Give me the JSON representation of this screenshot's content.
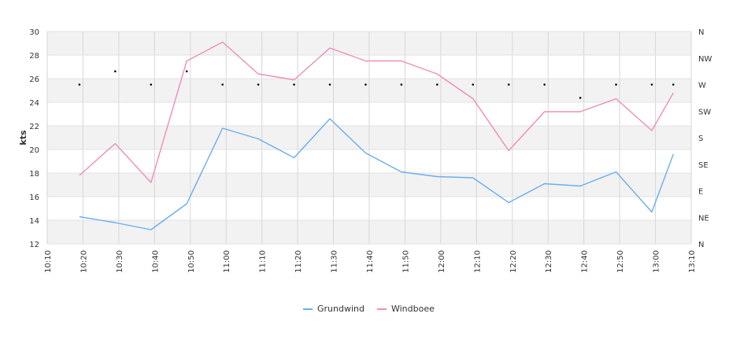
{
  "chart_data": {
    "type": "line",
    "ylabel": "kts",
    "ylim": [
      12,
      30
    ],
    "y_ticks": [
      12,
      14,
      16,
      18,
      20,
      22,
      24,
      26,
      28,
      30
    ],
    "x_ticks": [
      "10:10",
      "10:20",
      "10:30",
      "10:40",
      "10:50",
      "11:00",
      "11:10",
      "11:20",
      "11:30",
      "11:40",
      "11:50",
      "12:00",
      "12:10",
      "12:20",
      "12:30",
      "12:40",
      "12:50",
      "13:00",
      "13:10"
    ],
    "xlim": [
      "10:10",
      "13:10"
    ],
    "right_axis_label": "",
    "right_axis_ticks": [
      "N",
      "NE",
      "E",
      "SE",
      "S",
      "SW",
      "W",
      "NW",
      "N"
    ],
    "x": [
      "10:19",
      "10:29",
      "10:39",
      "10:49",
      "10:59",
      "11:09",
      "11:19",
      "11:29",
      "11:39",
      "11:49",
      "11:59",
      "12:09",
      "12:19",
      "12:29",
      "12:39",
      "12:49",
      "12:59",
      "13:05"
    ],
    "series": [
      {
        "name": "Grundwind",
        "color": "#6aaeef",
        "values": [
          14.3,
          13.8,
          13.2,
          15.4,
          21.8,
          20.9,
          19.3,
          22.6,
          19.7,
          18.1,
          17.7,
          17.6,
          15.5,
          17.1,
          16.9,
          18.1,
          14.7,
          19.6
        ]
      },
      {
        "name": "Windboee",
        "color": "#ef8db9",
        "values": [
          17.8,
          20.5,
          17.2,
          27.5,
          29.1,
          26.4,
          25.9,
          28.6,
          27.5,
          27.5,
          26.4,
          24.3,
          19.9,
          23.2,
          23.2,
          24.3,
          21.6,
          24.8
        ]
      }
    ],
    "direction": {
      "x": [
        "10:19",
        "10:29",
        "10:39",
        "10:49",
        "10:59",
        "11:09",
        "11:19",
        "11:29",
        "11:39",
        "11:49",
        "11:59",
        "12:09",
        "12:19",
        "12:29",
        "12:39",
        "12:49",
        "12:59",
        "13:05"
      ],
      "values": [
        "W",
        "WNW",
        "W",
        "WNW",
        "W",
        "W",
        "W",
        "W",
        "W",
        "W",
        "W",
        "W",
        "W",
        "W",
        "WSW",
        "W",
        "W",
        "W"
      ],
      "degrees": [
        270,
        292.5,
        270,
        292.5,
        270,
        270,
        270,
        270,
        270,
        270,
        270,
        270,
        270,
        270,
        247.5,
        270,
        270,
        270
      ]
    },
    "grid": true,
    "legend_position": "bottom"
  }
}
